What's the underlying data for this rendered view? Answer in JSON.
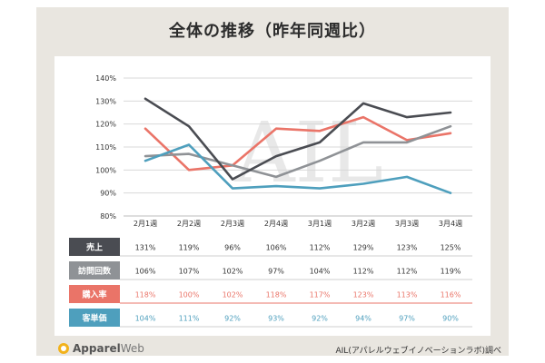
{
  "title": "全体の推移（昨年同週比）",
  "watermark": "AIL",
  "footer": {
    "logo_part1": "Apparel",
    "logo_part2": "Web",
    "credit": "AIL(アパレルウェブイノベーションラボ)調べ"
  },
  "chart_data": {
    "type": "line",
    "categories": [
      "2月1週",
      "2月2週",
      "2月3週",
      "2月4週",
      "3月1週",
      "3月2週",
      "3月3週",
      "3月4週"
    ],
    "yticks": [
      "80%",
      "90%",
      "100%",
      "110%",
      "120%",
      "130%",
      "140%"
    ],
    "ylim": [
      80,
      140
    ],
    "grid": true,
    "series": [
      {
        "name": "売上",
        "color": "#4a4c52",
        "values": [
          131,
          119,
          96,
          106,
          112,
          129,
          123,
          125
        ],
        "labels": [
          "131%",
          "119%",
          "96%",
          "106%",
          "112%",
          "129%",
          "123%",
          "125%"
        ]
      },
      {
        "name": "訪問回数",
        "color": "#8f9296",
        "values": [
          106,
          107,
          102,
          97,
          104,
          112,
          112,
          119
        ],
        "labels": [
          "106%",
          "107%",
          "102%",
          "97%",
          "104%",
          "112%",
          "112%",
          "119%"
        ]
      },
      {
        "name": "購入率",
        "color": "#ea7468",
        "values": [
          118,
          100,
          102,
          118,
          117,
          123,
          113,
          116
        ],
        "labels": [
          "118%",
          "100%",
          "102%",
          "118%",
          "117%",
          "123%",
          "113%",
          "116%"
        ]
      },
      {
        "name": "客単価",
        "color": "#4e9fbd",
        "values": [
          104,
          111,
          92,
          93,
          92,
          94,
          97,
          90
        ],
        "labels": [
          "104%",
          "111%",
          "92%",
          "93%",
          "92%",
          "94%",
          "97%",
          "90%"
        ]
      }
    ]
  }
}
